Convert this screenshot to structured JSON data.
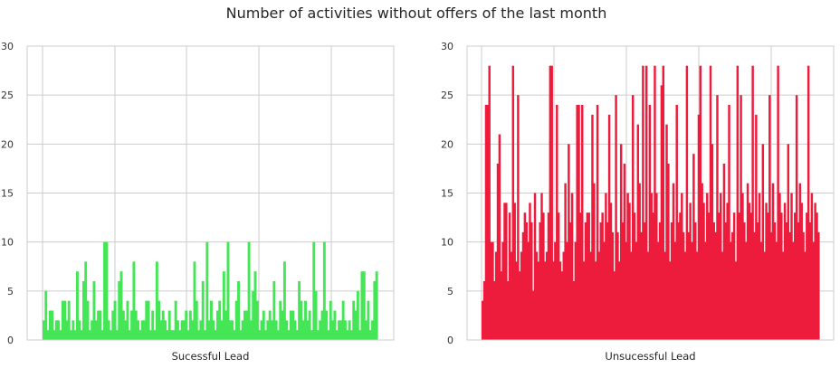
{
  "figure": {
    "title": "Number of activities without offers of the last month"
  },
  "chart_data": [
    {
      "type": "bar",
      "title": "",
      "xlabel": "Sucessful Lead",
      "ylabel": "",
      "color": "#44e656",
      "ylim": [
        0,
        30
      ],
      "yticks": [
        0,
        5,
        10,
        15,
        20,
        25,
        30
      ],
      "xticklabels": [],
      "grid": true,
      "legend": "none",
      "x_count": 160,
      "values": [
        2,
        5,
        1,
        3,
        3,
        1,
        2,
        2,
        1,
        4,
        4,
        2,
        4,
        1,
        2,
        1,
        7,
        2,
        1,
        6,
        8,
        4,
        1,
        2,
        6,
        2,
        3,
        3,
        1,
        10,
        10,
        2,
        1,
        3,
        4,
        1,
        6,
        7,
        3,
        2,
        4,
        1,
        3,
        8,
        3,
        2,
        1,
        2,
        2,
        4,
        4,
        1,
        3,
        1,
        8,
        4,
        2,
        3,
        2,
        1,
        3,
        1,
        1,
        4,
        2,
        1,
        2,
        2,
        3,
        1,
        3,
        2,
        8,
        4,
        1,
        2,
        6,
        1,
        10,
        2,
        4,
        2,
        1,
        3,
        4,
        2,
        7,
        3,
        10,
        2,
        2,
        1,
        4,
        6,
        1,
        2,
        3,
        3,
        10,
        2,
        5,
        7,
        4,
        1,
        2,
        3,
        1,
        2,
        3,
        2,
        6,
        2,
        1,
        4,
        3,
        8,
        2,
        1,
        3,
        3,
        2,
        1,
        6,
        4,
        2,
        4,
        2,
        3,
        1,
        10,
        5,
        1,
        2,
        3,
        10,
        3,
        1,
        4,
        2,
        3,
        1,
        2,
        2,
        4,
        2,
        1,
        2,
        1,
        4,
        3,
        5,
        1,
        7,
        7,
        2,
        4,
        1,
        2,
        6,
        7
      ]
    },
    {
      "type": "bar",
      "title": "",
      "xlabel": "Unsucessful Lead",
      "ylabel": "",
      "color": "#ed1c3c",
      "ylim": [
        0,
        30
      ],
      "yticks": [
        0,
        5,
        10,
        15,
        20,
        25,
        30
      ],
      "xticklabels": [],
      "grid": true,
      "legend": "none",
      "x_count": 200,
      "values": [
        4,
        6,
        24,
        24,
        28,
        10,
        10,
        6,
        9,
        18,
        21,
        7,
        10,
        14,
        14,
        6,
        13,
        9,
        28,
        14,
        8,
        25,
        7,
        9,
        11,
        13,
        12,
        10,
        14,
        12,
        5,
        15,
        9,
        8,
        12,
        15,
        13,
        8,
        9,
        13,
        28,
        28,
        8,
        10,
        24,
        13,
        8,
        7,
        9,
        16,
        10,
        20,
        12,
        15,
        6,
        10,
        24,
        24,
        13,
        24,
        8,
        12,
        13,
        13,
        9,
        23,
        16,
        8,
        24,
        9,
        12,
        13,
        10,
        15,
        12,
        23,
        14,
        11,
        7,
        25,
        11,
        8,
        20,
        12,
        18,
        10,
        15,
        14,
        9,
        25,
        13,
        10,
        22,
        16,
        11,
        28,
        12,
        28,
        9,
        24,
        15,
        13,
        28,
        15,
        10,
        12,
        26,
        28,
        9,
        22,
        18,
        8,
        12,
        16,
        10,
        24,
        12,
        13,
        15,
        11,
        9,
        28,
        11,
        14,
        10,
        19,
        12,
        9,
        23,
        28,
        16,
        14,
        10,
        15,
        13,
        28,
        20,
        12,
        11,
        25,
        13,
        15,
        9,
        18,
        12,
        14,
        24,
        10,
        11,
        13,
        8,
        28,
        13,
        25,
        15,
        12,
        10,
        16,
        14,
        13,
        28,
        11,
        23,
        12,
        15,
        10,
        20,
        9,
        14,
        13,
        25,
        11,
        16,
        12,
        10,
        28,
        15,
        13,
        9,
        14,
        12,
        20,
        11,
        15,
        10,
        13,
        25,
        12,
        16,
        14,
        11,
        9,
        13,
        28,
        12,
        15,
        10,
        14,
        13,
        11
      ]
    }
  ]
}
